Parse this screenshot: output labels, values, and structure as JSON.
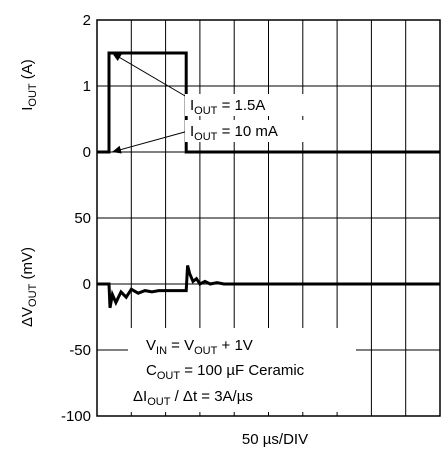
{
  "chart_data": {
    "type": "line",
    "xlabel": "50 µs/DIV",
    "x_divisions": 10,
    "grid": true,
    "panels": [
      {
        "id": "current",
        "ylabel": "I_OUT (A)",
        "ylim": [
          0,
          2
        ],
        "yticks": [
          "2",
          "1",
          "0"
        ],
        "series": [
          {
            "x": [
              0,
              0.35,
              0.35,
              2.6,
              2.6,
              10.0
            ],
            "y": [
              0,
              0,
              1.5,
              1.5,
              0,
              0
            ]
          }
        ]
      },
      {
        "id": "voltage",
        "ylabel": "ΔV_OUT (mV)",
        "ylim": [
          -100,
          50
        ],
        "yticks": [
          "50",
          "0",
          "-50",
          "-100"
        ],
        "series": [
          {
            "x": [
              0,
              0.35,
              0.38,
              0.45,
              0.55,
              0.7,
              0.85,
              1.0,
              1.2,
              1.4,
              1.6,
              1.8,
              2.0,
              2.2,
              2.4,
              2.6,
              2.64,
              2.7,
              2.8,
              2.9,
              3.0,
              3.15,
              3.3,
              3.5,
              3.7,
              4.0,
              10.0
            ],
            "y": [
              0,
              0,
              -18,
              -8,
              -14,
              -6,
              -10,
              -4,
              -7,
              -5,
              -6,
              -5,
              -5,
              -5,
              -5,
              -5,
              14,
              8,
              2,
              4,
              0,
              2,
              0,
              1,
              0,
              0,
              0
            ]
          }
        ]
      }
    ],
    "annotations": [
      {
        "id": "iout-high",
        "sym": "I",
        "sub": "OUT",
        "rest": " = 1.5A",
        "arrow_target": [
          0.35,
          1.5
        ],
        "panel": "current"
      },
      {
        "id": "iout-low",
        "sym": "I",
        "sub": "OUT",
        "rest": " = 10 mA",
        "arrow_target": [
          0.35,
          0
        ],
        "panel": "current"
      }
    ],
    "conditions": {
      "line1": {
        "a": "V",
        "a_sub": "IN",
        "mid": " = V",
        "b_sub": "OUT",
        "rest": " + 1V"
      },
      "line2": {
        "a": "C",
        "a_sub": "OUT",
        "rest": " = 100 µF Ceramic"
      },
      "line3": {
        "a": "ΔI",
        "a_sub": "OUT",
        "rest": " / Δt = 3A/µs"
      }
    }
  }
}
